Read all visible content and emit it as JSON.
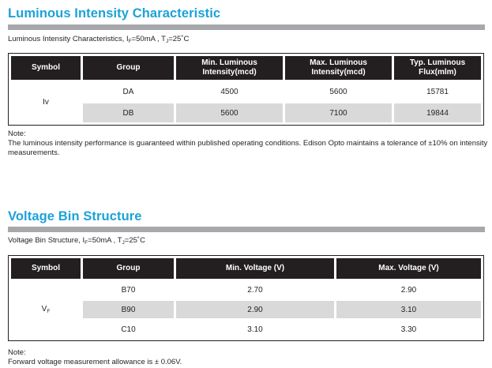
{
  "luminous": {
    "title": "Luminous Intensity Characteristic",
    "condition": {
      "prefix": "Luminous Intensity Characteristics, I",
      "sub_f": "F",
      "mid": "=50mA , T",
      "sub_j": "J",
      "suffix": "=25˚C"
    },
    "headers": {
      "symbol": "Symbol",
      "group": "Group",
      "min_line1": "Min. Luminous",
      "min_line2": "Intensity(mcd)",
      "max_line1": "Max. Luminous",
      "max_line2": "Intensity(mcd)",
      "typ_line1": "Typ. Luminous",
      "typ_line2": "Flux(mlm)"
    },
    "symbol": "Iv",
    "rows": [
      {
        "group": "DA",
        "min": "4500",
        "max": "5600",
        "typ": "15781"
      },
      {
        "group": "DB",
        "min": "5600",
        "max": "7100",
        "typ": "19844"
      }
    ],
    "note_label": "Note:",
    "note_text": "The luminous intensity performance is guaranteed within published operating conditions.  Edison Opto maintains a tolerance of ±10% on intensity measurements."
  },
  "voltage": {
    "title": "Voltage Bin Structure",
    "condition": {
      "prefix": "Voltage Bin Structure, I",
      "sub_f": "F",
      "mid": "=50mA , T",
      "sub_j": "J",
      "suffix": "=25˚C"
    },
    "headers": {
      "symbol": "Symbol",
      "group": "Group",
      "min": "Min. Voltage (V)",
      "max": "Max. Voltage (V)"
    },
    "symbol": "V",
    "symbol_sub": "F",
    "rows": [
      {
        "group": "B70",
        "min": "2.70",
        "max": "2.90"
      },
      {
        "group": "B90",
        "min": "2.90",
        "max": "3.10"
      },
      {
        "group": "C10",
        "min": "3.10",
        "max": "3.30"
      }
    ],
    "note_label": "Note:",
    "note_text": "Forward voltage measurement allowance is ± 0.06V."
  },
  "colors": {
    "title": "#1aa2d9",
    "rule": "#a6a8ab",
    "header_bg": "#231f20",
    "shade": "#d9d9d9"
  }
}
